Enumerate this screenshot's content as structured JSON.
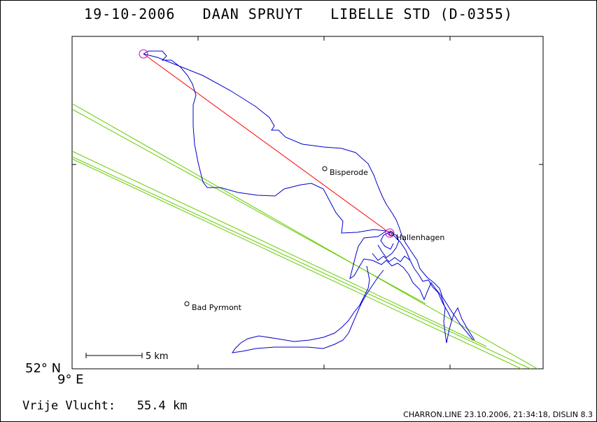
{
  "title": "19-10-2006   DAAN SPRUYT   LIBELLE STD (D-0355)",
  "axis": {
    "lat_label": "52° N",
    "lon_label": "9° E"
  },
  "places": [
    {
      "name": "Bisperode"
    },
    {
      "name": "Hallenhagen"
    },
    {
      "name": "Bad Pyrmont"
    }
  ],
  "scale_bar": {
    "label": "5 km"
  },
  "flight": {
    "label": "Vrije Vlucht:",
    "distance": "55.4 km"
  },
  "footer": "CHARRON.LINE 23.10.2006, 21:34:18, DISLIN 8.3",
  "colors": {
    "track": "#0000cc",
    "straight_line": "#ff0000",
    "airspace": "#66cc00",
    "turnpoint": "#cc00cc",
    "axes": "#000000"
  }
}
